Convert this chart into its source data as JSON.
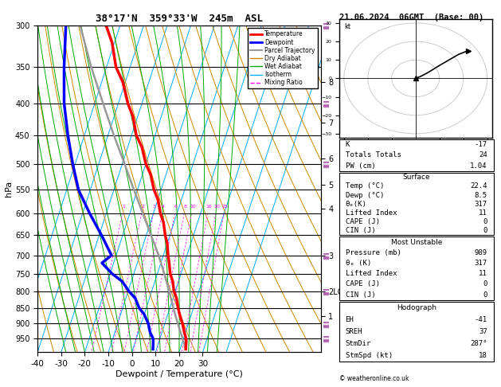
{
  "title_main": "38°17'N  359°33'W  245m  ASL",
  "date_title": "21.06.2024  06GMT  (Base: 00)",
  "xlabel": "Dewpoint / Temperature (°C)",
  "ylabel_left": "hPa",
  "xlim": [
    -40,
    35
  ],
  "p_min": 300,
  "p_max": 1000,
  "pressure_levels": [
    300,
    350,
    400,
    450,
    500,
    550,
    600,
    650,
    700,
    750,
    800,
    850,
    900,
    950
  ],
  "temp_color": "#ff0000",
  "dewp_color": "#0000ff",
  "parcel_color": "#999999",
  "dry_adiabat_color": "#cc8800",
  "wet_adiabat_color": "#00aa00",
  "isotherm_color": "#00aaff",
  "mixing_color": "#ff00ff",
  "skew": 45,
  "temp_profile": {
    "pressure": [
      989,
      960,
      950,
      930,
      900,
      870,
      850,
      820,
      800,
      770,
      750,
      720,
      700,
      670,
      650,
      620,
      600,
      570,
      550,
      520,
      500,
      470,
      450,
      420,
      400,
      370,
      350,
      320,
      300
    ],
    "temp": [
      22.4,
      21.5,
      21.0,
      19.5,
      17.5,
      15.0,
      13.5,
      11.5,
      9.5,
      7.5,
      5.5,
      3.5,
      2.0,
      0.0,
      -2.0,
      -4.5,
      -7.0,
      -10.0,
      -13.0,
      -16.5,
      -20.0,
      -24.0,
      -28.0,
      -32.0,
      -36.0,
      -41.0,
      -46.0,
      -51.0,
      -56.0
    ]
  },
  "dewp_profile": {
    "pressure": [
      989,
      960,
      950,
      930,
      900,
      870,
      850,
      820,
      800,
      770,
      750,
      720,
      700,
      650,
      600,
      550,
      500,
      450,
      400,
      350,
      300
    ],
    "dewp": [
      8.5,
      7.5,
      7.0,
      5.0,
      3.0,
      0.0,
      -3.0,
      -6.0,
      -9.5,
      -14.0,
      -19.0,
      -25.0,
      -22.0,
      -29.0,
      -37.0,
      -45.0,
      -51.0,
      -57.0,
      -63.0,
      -68.0,
      -73.0
    ]
  },
  "parcel_profile": {
    "pressure": [
      989,
      950,
      900,
      850,
      800,
      750,
      700,
      650,
      600,
      550,
      500,
      450,
      400,
      350,
      300
    ],
    "temp": [
      22.4,
      19.5,
      15.5,
      11.5,
      7.5,
      3.0,
      -2.0,
      -8.0,
      -14.5,
      -21.5,
      -29.0,
      -37.5,
      -46.5,
      -56.5,
      -67.0
    ]
  },
  "mixing_ratios": [
    1,
    2,
    3,
    4,
    6,
    8,
    10,
    16,
    20,
    25
  ],
  "km_ticks": {
    "8": 370,
    "7": 430,
    "6": 490,
    "5": 540,
    "4": 590,
    "3": 700,
    "2LCL": 800,
    "1": 875
  },
  "wind_barb_pressures": [
    300,
    400,
    500,
    700,
    800,
    900,
    950
  ],
  "stats": {
    "K": "-17",
    "Totals Totals": "24",
    "PW (cm)": "1.04",
    "Surface_Temp": "22.4",
    "Surface_Dewp": "8.5",
    "Surface_theta_e": "317",
    "Surface_LI": "11",
    "Surface_CAPE": "0",
    "Surface_CIN": "0",
    "MU_Pressure": "989",
    "MU_theta_e": "317",
    "MU_LI": "11",
    "MU_CAPE": "0",
    "MU_CIN": "0",
    "EH": "-41",
    "SREH": "37",
    "StmDir": "287°",
    "StmSpd": "18"
  },
  "copyright": "© weatheronline.co.uk"
}
